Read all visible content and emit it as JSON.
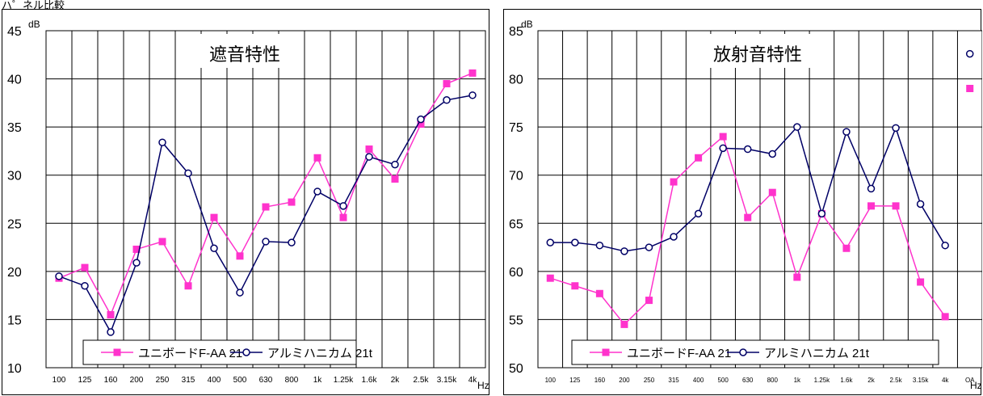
{
  "top_label": "ハ゜ネル比較",
  "colors": {
    "pink": "#ff33cc",
    "navy": "#000066"
  },
  "chart_data": [
    {
      "type": "line",
      "title": "遮音特性",
      "ylabel": "dB",
      "xlabel": "Hz",
      "ylim": [
        10,
        45
      ],
      "yticks": [
        10,
        15,
        20,
        25,
        30,
        35,
        40,
        45
      ],
      "grid": true,
      "legend": "bottom",
      "categories": [
        "100",
        "125",
        "160",
        "200",
        "250",
        "315",
        "400",
        "500",
        "630",
        "800",
        "1k",
        "1.25k",
        "1.6k",
        "2k",
        "2.5k",
        "3.15k",
        "4k"
      ],
      "series": [
        {
          "name": "ユニボードF-AA 21",
          "marker": "square",
          "color": "#ff33cc",
          "values": [
            19.3,
            20.4,
            15.5,
            22.3,
            23.1,
            18.5,
            25.6,
            21.6,
            26.7,
            27.2,
            31.8,
            25.6,
            32.7,
            29.6,
            35.3,
            39.5,
            40.6
          ]
        },
        {
          "name": "アルミハニカム 21t",
          "marker": "circle",
          "color": "#000066",
          "values": [
            19.5,
            18.5,
            13.7,
            20.9,
            33.4,
            30.2,
            22.4,
            17.8,
            23.1,
            23.0,
            28.3,
            26.8,
            31.9,
            31.1,
            35.8,
            37.8,
            38.3
          ]
        }
      ]
    },
    {
      "type": "line",
      "title": "放射音特性",
      "ylabel": "dB",
      "xlabel": "Hz",
      "ylim": [
        50,
        85
      ],
      "yticks": [
        50,
        55,
        60,
        65,
        70,
        75,
        80,
        85
      ],
      "grid": true,
      "legend": "bottom",
      "categories": [
        "100",
        "125",
        "160",
        "200",
        "250",
        "315",
        "400",
        "500",
        "630",
        "800",
        "1k",
        "1.25k",
        "1.6k",
        "2k",
        "2.5k",
        "3.15k",
        "4k",
        "OA"
      ],
      "series": [
        {
          "name": "ユニボードF-AA 21",
          "marker": "square",
          "color": "#ff33cc",
          "values": [
            59.3,
            58.5,
            57.7,
            54.5,
            57.0,
            69.3,
            71.8,
            74.0,
            65.6,
            68.2,
            59.4,
            66.0,
            62.4,
            66.8,
            66.8,
            58.9,
            55.3,
            79.0
          ]
        },
        {
          "name": "アルミハニカム 21t",
          "marker": "circle",
          "color": "#000066",
          "values": [
            63.0,
            63.0,
            62.7,
            62.1,
            62.5,
            63.6,
            66.0,
            72.8,
            72.7,
            72.2,
            75.0,
            66.0,
            74.5,
            68.6,
            74.9,
            67.0,
            62.7,
            82.6
          ]
        }
      ]
    }
  ]
}
